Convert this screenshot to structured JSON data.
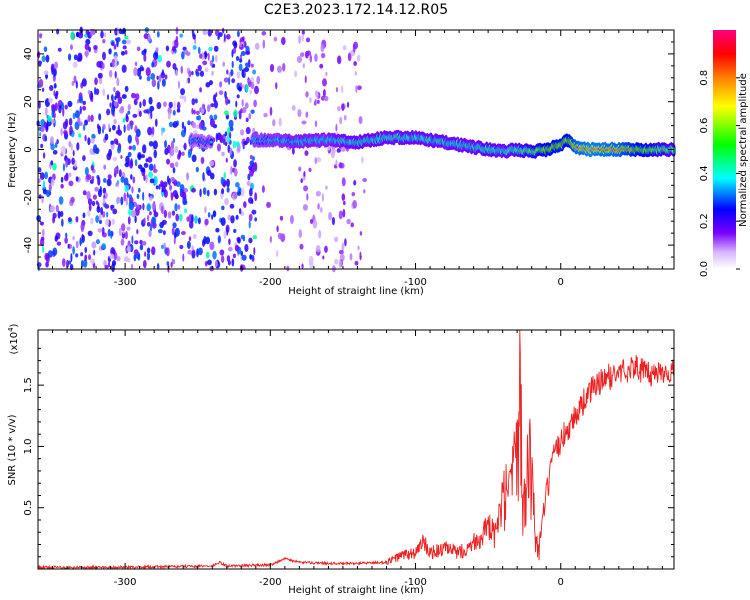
{
  "title": "C2E3.2023.172.14.12.R05",
  "chart_data": [
    {
      "type": "heatmap",
      "xlabel": "Height of straight line (km)",
      "ylabel": "Frequency (Hz)",
      "xlim": [
        -360,
        78
      ],
      "ylim": [
        -50,
        50
      ],
      "xticks": [
        -300,
        -200,
        -100,
        0
      ],
      "xtick_labels": [
        "-300",
        "-200",
        "-100",
        "0"
      ],
      "yticks": [
        -40,
        -20,
        0,
        20,
        40
      ],
      "ytick_labels": [
        "-40",
        "-20",
        "0",
        "20",
        "40"
      ],
      "colorbar": {
        "label": "Normalized spectral amplitude",
        "range": [
          0,
          1
        ],
        "ticks": [
          0.0,
          0.2,
          0.4,
          0.6,
          0.8
        ],
        "tick_labels": [
          "0.0",
          "0.2",
          "0.4",
          "0.6",
          "0.8"
        ],
        "colormap": [
          "#ffffff",
          "#7b00ff",
          "#0000ff",
          "#00ffff",
          "#00ff00",
          "#ffff00",
          "#ff8000",
          "#ff0000",
          "#ff0080"
        ]
      },
      "noise_regions": [
        {
          "x_start": -360,
          "x_end": -210,
          "density": 0.55,
          "amplitude": 0.25
        },
        {
          "x_start": -210,
          "x_end": -180,
          "density": 0.08,
          "amplitude": 0.1
        },
        {
          "x_start": -180,
          "x_end": -135,
          "density": 0.25,
          "amplitude": 0.1
        }
      ],
      "ridge": {
        "x": [
          -255,
          -245,
          -210,
          -180,
          -160,
          -140,
          -120,
          -100,
          -80,
          -60,
          -50,
          -40,
          -30,
          -20,
          -10,
          0,
          5,
          10,
          20,
          40,
          78
        ],
        "frequency": [
          4,
          3,
          4,
          3.5,
          4,
          3,
          5,
          5,
          3,
          1,
          0,
          -1,
          0,
          -1,
          0,
          2,
          4,
          1,
          0,
          0,
          0
        ],
        "amplitude": [
          0.3,
          0.3,
          0.35,
          0.4,
          0.4,
          0.45,
          0.45,
          0.45,
          0.45,
          0.45,
          0.5,
          0.45,
          0.5,
          0.6,
          0.7,
          0.75,
          0.7,
          0.85,
          0.9,
          0.85,
          0.5
        ]
      }
    },
    {
      "type": "line",
      "xlabel": "Height of straight line (km)",
      "ylabel": "SNR (10 * v/v)",
      "yscale_label": "(x10",
      "yscale_exponent": "4",
      "yscale_suffix": ")",
      "xlim": [
        -360,
        78
      ],
      "ylim": [
        0,
        1.95
      ],
      "xticks": [
        -300,
        -200,
        -100,
        0
      ],
      "xtick_labels": [
        "-300",
        "-200",
        "-100",
        "0"
      ],
      "yticks": [
        0.5,
        1.0,
        1.5
      ],
      "ytick_labels": [
        "0.5",
        "1.0",
        "1.5"
      ],
      "color": "#ee2020",
      "series": [
        {
          "x": [
            -360,
            -300,
            -240,
            -235,
            -230,
            -200,
            -190,
            -180,
            -150,
            -120,
            -110,
            -100,
            -95,
            -90,
            -80,
            -70,
            -60,
            -50,
            -45,
            -40,
            -35,
            -30,
            -28,
            -26,
            -25,
            -24,
            -22,
            -20,
            -18,
            -15,
            -10,
            -5,
            0,
            5,
            10,
            15,
            20,
            25,
            30,
            40,
            50,
            55,
            60,
            70,
            78
          ],
          "values": [
            0.01,
            0.01,
            0.02,
            0.05,
            0.02,
            0.03,
            0.08,
            0.05,
            0.04,
            0.05,
            0.1,
            0.12,
            0.2,
            0.12,
            0.15,
            0.12,
            0.2,
            0.3,
            0.25,
            0.5,
            0.6,
            0.8,
            1.95,
            0.6,
            0.95,
            0.4,
            1.0,
            0.8,
            0.3,
            0.15,
            0.6,
            0.9,
            1.05,
            1.15,
            1.25,
            1.35,
            1.45,
            1.5,
            1.55,
            1.6,
            1.65,
            1.63,
            1.58,
            1.62,
            1.6
          ]
        }
      ]
    }
  ]
}
